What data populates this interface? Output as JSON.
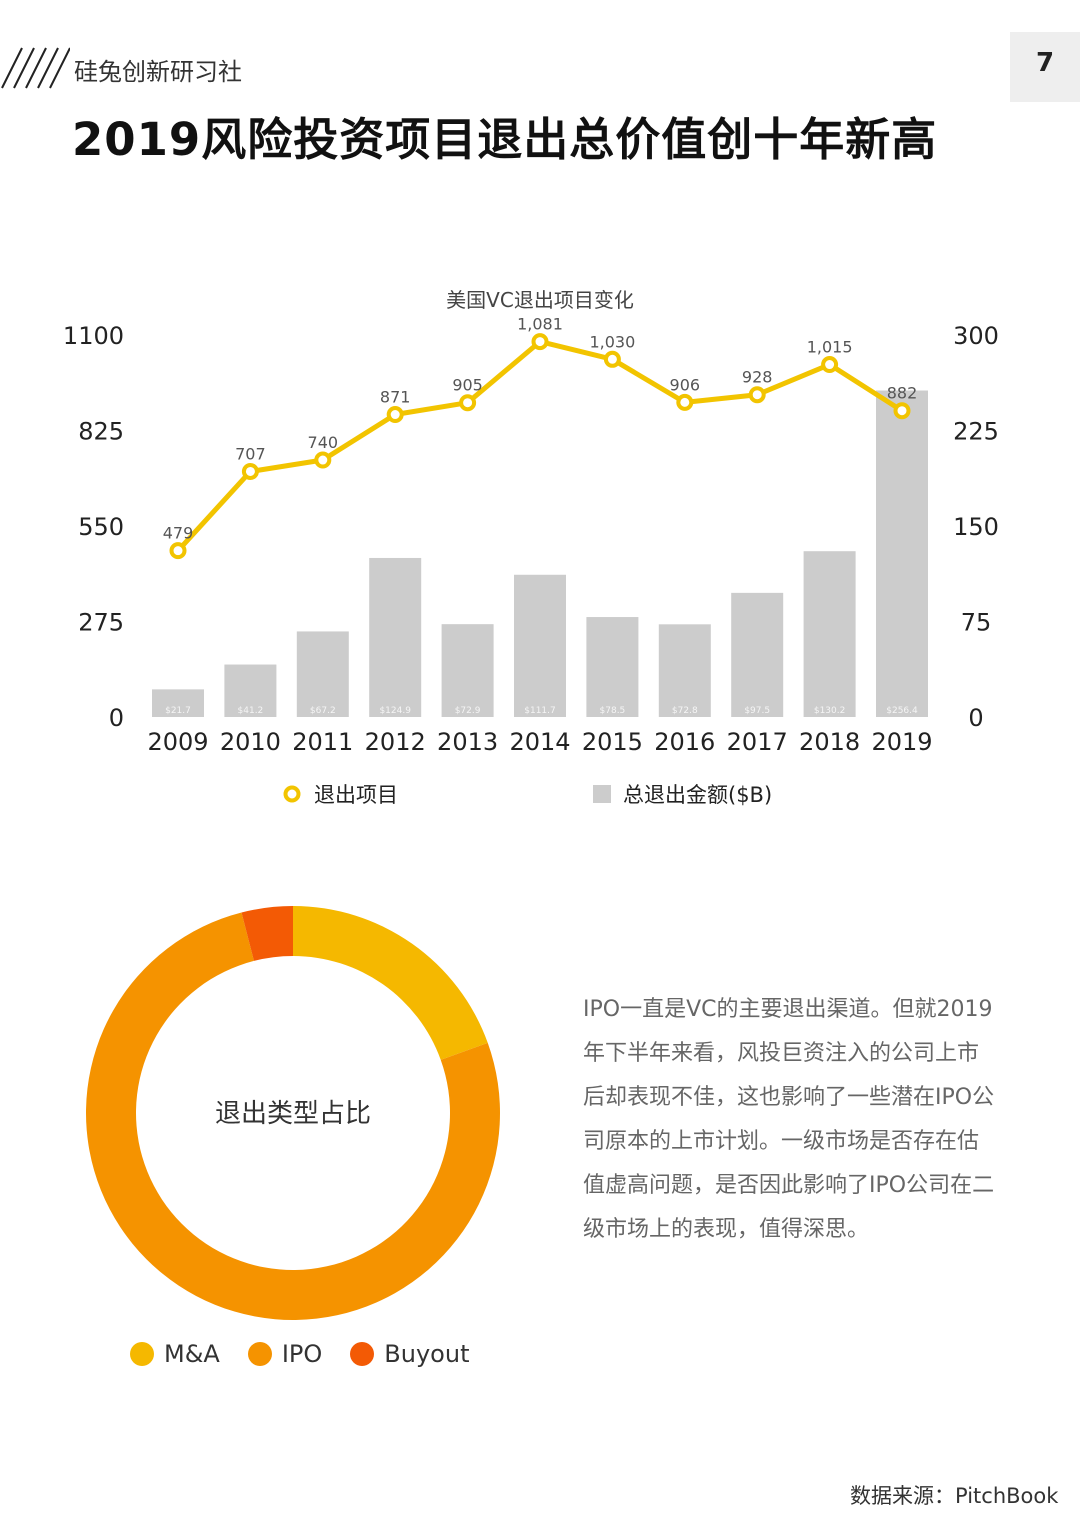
{
  "header": {
    "brand": "硅兔创新研习社",
    "page_number": "7",
    "title": "2019风险投资项目退出总价值创十年新高"
  },
  "chart_data": [
    {
      "type": "bar+line",
      "title": "美国VC退出项目变化",
      "categories": [
        "2009",
        "2010",
        "2011",
        "2012",
        "2013",
        "2014",
        "2015",
        "2016",
        "2017",
        "2018",
        "2019"
      ],
      "series": [
        {
          "name": "退出项目",
          "type": "line",
          "axis": "left",
          "color": "#f2c400",
          "values": [
            479,
            707,
            740,
            871,
            905,
            1081,
            1030,
            906,
            928,
            1015,
            882
          ],
          "labels": [
            "479",
            "707",
            "740",
            "871",
            "905",
            "1,081",
            "1,030",
            "906",
            "928",
            "1,015",
            "882"
          ]
        },
        {
          "name": "总退出金额($B)",
          "type": "bar",
          "axis": "right",
          "color": "#cccccc",
          "values": [
            21.7,
            41.2,
            67.2,
            124.9,
            72.9,
            111.7,
            78.5,
            72.8,
            97.5,
            130.2,
            256.4
          ],
          "labels": [
            "$21.7",
            "$41.2",
            "$67.2",
            "$124.9",
            "$72.9",
            "$111.7",
            "$78.5",
            "$72.8",
            "$97.5",
            "$130.2",
            "$256.4"
          ]
        }
      ],
      "y_left": {
        "range": [
          0,
          1100
        ],
        "ticks": [
          "0",
          "275",
          "550",
          "825",
          "1100"
        ]
      },
      "y_right": {
        "range": [
          0,
          300
        ],
        "ticks": [
          "0",
          "75",
          "150",
          "225",
          "300"
        ]
      },
      "legend_position": "bottom",
      "grid": false
    },
    {
      "type": "pie",
      "variant": "donut",
      "center_label": "退出类型占比",
      "slices": [
        {
          "name": "M&A",
          "value": 19.5,
          "color": "#f5b800"
        },
        {
          "name": "IPO",
          "value": 76.5,
          "color": "#f59300"
        },
        {
          "name": "Buyout",
          "value": 4.0,
          "color": "#f35a05"
        }
      ],
      "legend_position": "bottom"
    }
  ],
  "body_text": "IPO一直是VC的主要退出渠道。但就2019年下半年来看，风投巨资注入的公司上市后却表现不佳，这也影响了一些潜在IPO公司原本的上市计划。一级市场是否存在估值虚高问题，是否因此影响了IPO公司在二级市场上的表现，值得深思。",
  "source": "数据来源：PitchBook"
}
